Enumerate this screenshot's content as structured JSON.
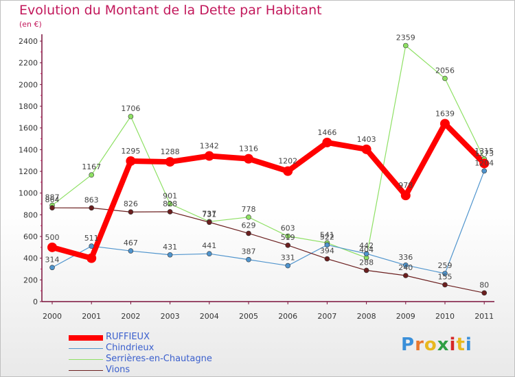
{
  "chart_data": {
    "type": "line",
    "title": "Evolution du Montant de la Dette par Habitant",
    "subtitle": "(en €)",
    "categories": [
      "2000",
      "2001",
      "2002",
      "2003",
      "2004",
      "2005",
      "2006",
      "2007",
      "2008",
      "2009",
      "2010",
      "2011"
    ],
    "ylim": [
      0,
      2400
    ],
    "yticks": [
      0,
      200,
      400,
      600,
      800,
      1000,
      1200,
      1400,
      1600,
      1800,
      2000,
      2200,
      2400
    ],
    "grid": false,
    "legend_position": "bottom-left",
    "series": [
      {
        "name": "RUFFIEUX",
        "color": "#ff0000",
        "values": [
          500,
          400,
          1295,
          1288,
          1342,
          1316,
          1202,
          1466,
          1403,
          978,
          1639,
          1273
        ],
        "labels": [
          "500",
          "",
          "1295",
          "1288",
          "1342",
          "1316",
          "1202",
          "1466",
          "1403",
          "978",
          "1639",
          "1273"
        ]
      },
      {
        "name": "Chindrieux",
        "color": "#4f94cd",
        "values": [
          314,
          511,
          467,
          431,
          441,
          387,
          331,
          522,
          442,
          336,
          259,
          1204
        ],
        "labels": [
          "314",
          "511",
          "467",
          "431",
          "441",
          "387",
          "331",
          "522",
          "442",
          "336",
          "259",
          "1204"
        ]
      },
      {
        "name": "Serrières-en-Chautagne",
        "color": "#8ee064",
        "values": [
          887,
          1167,
          1706,
          901,
          737,
          778,
          603,
          541,
          404,
          2359,
          2056,
          1315
        ],
        "labels": [
          "887",
          "1167",
          "1706",
          "901",
          "737",
          "778",
          "603",
          "541",
          "404",
          "2359",
          "2056",
          "1315"
        ]
      },
      {
        "name": "Vions",
        "color": "#6b1f1f",
        "values": [
          864,
          863,
          826,
          828,
          731,
          629,
          519,
          394,
          288,
          240,
          155,
          80
        ],
        "labels": [
          "864",
          "863",
          "826",
          "828",
          "731",
          "629",
          "519",
          "394",
          "288",
          "240",
          "155",
          "80"
        ]
      }
    ]
  },
  "brand": {
    "letters": [
      "P",
      "r",
      "o",
      "x",
      "i",
      "t",
      "i"
    ],
    "colors": [
      "#3a8fd9",
      "#e8772e",
      "#e8b81f",
      "#2f9e44",
      "#d62828",
      "#e8b81f",
      "#3a8fd9"
    ]
  }
}
